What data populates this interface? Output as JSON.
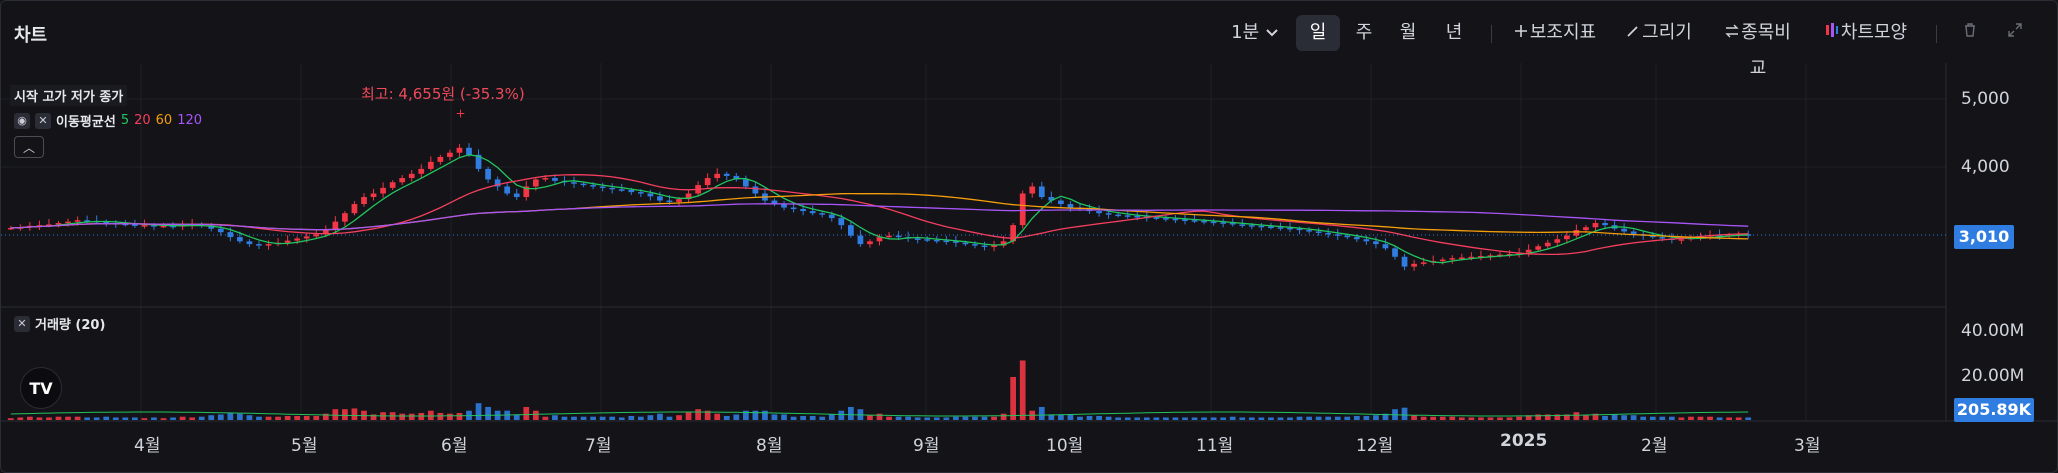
{
  "toolbar": {
    "title": "차트",
    "interval": "1분",
    "periods": [
      "일",
      "주",
      "월",
      "년"
    ],
    "active_period": "일",
    "indicators": "보조지표",
    "draw": "그리기",
    "compare": "종목비교",
    "style": "차트모양"
  },
  "legend": {
    "ohlc": "시작 고가 저가 종가",
    "ma_label": "이동평균선",
    "ma_periods": [
      "5",
      "20",
      "60",
      "120"
    ],
    "ma_colors": [
      "#22c55e",
      "#f43f5e",
      "#f59e0b",
      "#a855f7"
    ],
    "volume_label": "거래량 (20)"
  },
  "annotations": {
    "max_label": "최고: 4,655원 (-35.3%)"
  },
  "price_axis": {
    "ticks": [
      "5,000",
      "4,000"
    ],
    "current": "3,010"
  },
  "volume_axis": {
    "ticks": [
      "40.00M",
      "20.00M"
    ],
    "current": "205.89K"
  },
  "time_axis": [
    "4월",
    "5월",
    "6월",
    "7월",
    "8월",
    "9월",
    "10월",
    "11월",
    "12월",
    "2025",
    "2월",
    "3월"
  ],
  "colors": {
    "up": "#f23645",
    "down": "#2f7de1",
    "background": "#131318"
  },
  "chart_data": {
    "type": "candlestick",
    "price_range": [
      2000,
      5200
    ],
    "price_ticks": [
      5000,
      4000
    ],
    "last_close": 3010,
    "max_high": 4655,
    "volume_ticks": [
      40000000,
      20000000
    ],
    "last_volume": 205890,
    "closes": [
      3110,
      3120,
      3140,
      3150,
      3160,
      3180,
      3200,
      3220,
      3210,
      3200,
      3180,
      3170,
      3160,
      3150,
      3150,
      3140,
      3140,
      3130,
      3150,
      3160,
      3140,
      3100,
      3050,
      2980,
      2920,
      2880,
      2860,
      2880,
      2900,
      2930,
      2960,
      2990,
      3020,
      3080,
      3200,
      3320,
      3450,
      3550,
      3600,
      3680,
      3760,
      3820,
      3880,
      3950,
      4050,
      4120,
      4180,
      4250,
      4150,
      3950,
      3800,
      3700,
      3600,
      3550,
      3700,
      3800,
      3820,
      3780,
      3760,
      3740,
      3720,
      3700,
      3680,
      3660,
      3650,
      3620,
      3600,
      3560,
      3500,
      3480,
      3520,
      3600,
      3720,
      3820,
      3880,
      3850,
      3800,
      3700,
      3600,
      3500,
      3450,
      3400,
      3380,
      3350,
      3320,
      3300,
      3250,
      3150,
      3000,
      2880,
      2920,
      2980,
      3000,
      2980,
      2960,
      2950,
      2940,
      2930,
      2920,
      2900,
      2880,
      2860,
      2840,
      2860,
      2920,
      3150,
      3600,
      3700,
      3550,
      3500,
      3450,
      3400,
      3380,
      3350,
      3320,
      3300,
      3290,
      3280,
      3270,
      3260,
      3250,
      3240,
      3230,
      3220,
      3210,
      3200,
      3190,
      3180,
      3160,
      3150,
      3140,
      3130,
      3120,
      3110,
      3100,
      3080,
      3060,
      3040,
      3020,
      3000,
      2980,
      2950,
      2920,
      2880,
      2820,
      2700,
      2560,
      2600,
      2620,
      2640,
      2660,
      2680,
      2690,
      2700,
      2710,
      2720,
      2730,
      2740,
      2760,
      2800,
      2850,
      2900,
      2950,
      3000,
      3080,
      3120,
      3180,
      3150,
      3100,
      3060,
      3020,
      3000,
      2980,
      2960,
      2940,
      2950,
      2970,
      2990,
      3010,
      3000,
      3010,
      3020,
      3010
    ]
  }
}
